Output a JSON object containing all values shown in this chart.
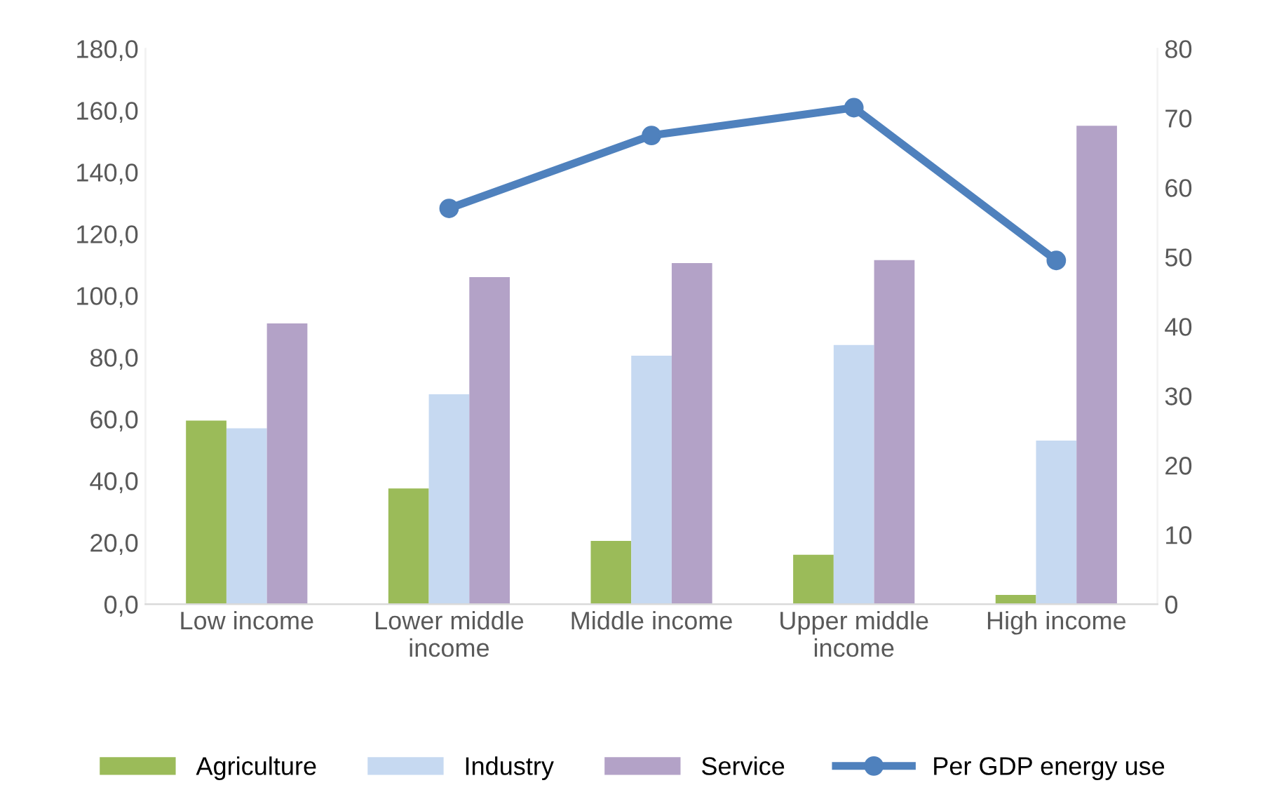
{
  "chart_data": {
    "type": "bar",
    "categories": [
      "Low income",
      "Lower middle\nincome",
      "Middle income",
      "Upper middle\nincome",
      "High income"
    ],
    "series": [
      {
        "name": "Agriculture",
        "color": "#9bbb59",
        "values": [
          59.5,
          37.5,
          20.5,
          16,
          3
        ]
      },
      {
        "name": "Industry",
        "color": "#c6d9f1",
        "values": [
          57,
          68,
          80.5,
          84,
          53
        ]
      },
      {
        "name": "Service",
        "color": "#b3a2c7",
        "values": [
          91,
          106,
          110.5,
          111.5,
          155
        ]
      },
      {
        "name": "Per GDP energy use",
        "type": "line",
        "axis": "y2",
        "color": "#4f81bd",
        "marker": "circle",
        "values": [
          null,
          57,
          67.5,
          71.5,
          49.5
        ]
      }
    ],
    "ylim": [
      0,
      180
    ],
    "yticks": [
      {
        "value": 0,
        "label": "0,0"
      },
      {
        "value": 20,
        "label": "20,0"
      },
      {
        "value": 40,
        "label": "40,0"
      },
      {
        "value": 60,
        "label": "60,0"
      },
      {
        "value": 80,
        "label": "80,0"
      },
      {
        "value": 100,
        "label": "100,0"
      },
      {
        "value": 120,
        "label": "120,0"
      },
      {
        "value": 140,
        "label": "140,0"
      },
      {
        "value": 160,
        "label": "160,0"
      },
      {
        "value": 180,
        "label": "180,0"
      }
    ],
    "y2lim": [
      0,
      80
    ],
    "y2ticks": [
      0,
      10,
      20,
      30,
      40,
      50,
      60,
      70,
      80
    ],
    "grid": false,
    "legend": "bottom"
  }
}
